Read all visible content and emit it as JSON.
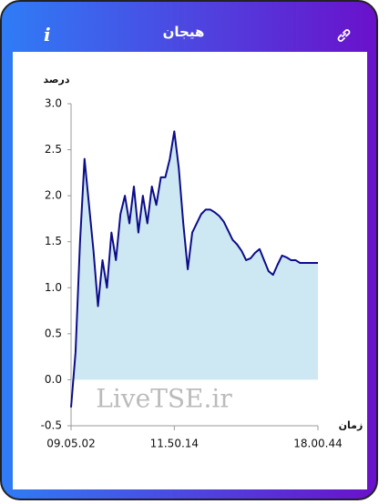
{
  "header": {
    "title": "هیجان",
    "info": "i"
  },
  "watermark": "LiveTSE.ir",
  "chart_data": {
    "type": "area",
    "ylabel": "درصد",
    "xlabel": "زمان",
    "categories": [
      "09.05.02",
      null,
      null,
      null,
      null,
      null,
      null,
      null,
      null,
      null,
      null,
      null,
      null,
      null,
      null,
      null,
      null,
      null,
      null,
      null,
      null,
      null,
      null,
      "11.50.14",
      null,
      null,
      null,
      null,
      null,
      null,
      null,
      null,
      null,
      null,
      null,
      null,
      null,
      null,
      null,
      null,
      null,
      null,
      null,
      null,
      null,
      null,
      null,
      null,
      null,
      null,
      null,
      null,
      null,
      null,
      null,
      "18.00.44"
    ],
    "series": [
      {
        "name": "هیجان",
        "color": "#0c0c8a",
        "fill": "#cde8f2",
        "values": [
          -0.3,
          0.3,
          1.5,
          2.4,
          1.9,
          1.4,
          0.8,
          1.3,
          1.0,
          1.6,
          1.3,
          1.8,
          2.0,
          1.7,
          2.1,
          1.6,
          2.0,
          1.7,
          2.1,
          1.9,
          2.2,
          2.2,
          2.4,
          2.7,
          2.3,
          1.7,
          1.2,
          1.6,
          1.7,
          1.8,
          1.85,
          1.85,
          1.82,
          1.78,
          1.72,
          1.62,
          1.52,
          1.47,
          1.4,
          1.3,
          1.32,
          1.38,
          1.42,
          1.3,
          1.18,
          1.14,
          1.25,
          1.35,
          1.33,
          1.3,
          1.3,
          1.27,
          1.27,
          1.27,
          1.27,
          1.27
        ]
      }
    ],
    "ylim": [
      -0.5,
      3.0
    ],
    "yticks": [
      -0.5,
      {
        "value": 0,
        "label": "0.0"
      },
      0.5,
      {
        "value": 1,
        "label": "1.0"
      },
      1.5,
      {
        "value": 2,
        "label": "2.0"
      },
      2.5,
      {
        "value": 3,
        "label": "3.0"
      }
    ],
    "baseline": 0
  }
}
